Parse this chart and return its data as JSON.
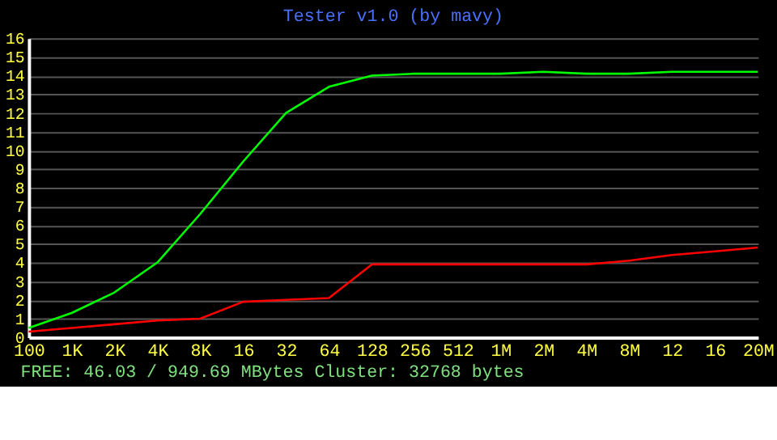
{
  "chart_data": {
    "type": "line",
    "title": "Tester v1.0 (by mavy)",
    "categories": [
      "100",
      "1K",
      "2K",
      "4K",
      "8K",
      "16",
      "32",
      "64",
      "128",
      "256",
      "512",
      "1M",
      "2M",
      "4M",
      "8M",
      "12",
      "16",
      "20M"
    ],
    "series": [
      {
        "color": "#00ff00",
        "values": [
          0.5,
          1.3,
          2.4,
          4.0,
          6.6,
          9.4,
          12.0,
          13.4,
          14.0,
          14.1,
          14.1,
          14.1,
          14.2,
          14.1,
          14.1,
          14.2,
          14.2,
          14.2
        ]
      },
      {
        "color": "#ff0000",
        "values": [
          0.3,
          0.5,
          0.7,
          0.9,
          1.0,
          1.9,
          2.0,
          2.1,
          3.9,
          3.9,
          3.9,
          3.9,
          3.9,
          3.9,
          4.1,
          4.4,
          4.6,
          4.8
        ]
      }
    ],
    "ylim": [
      0,
      16
    ],
    "yticks": [
      0,
      1,
      2,
      3,
      4,
      5,
      6,
      7,
      8,
      9,
      10,
      11,
      12,
      13,
      14,
      15,
      16
    ],
    "grid": "y",
    "marker": "none",
    "line_style": "solid",
    "annotations": [
      "FREE:  46.03 / 949.69 MBytes Cluster: 32768 bytes"
    ]
  }
}
